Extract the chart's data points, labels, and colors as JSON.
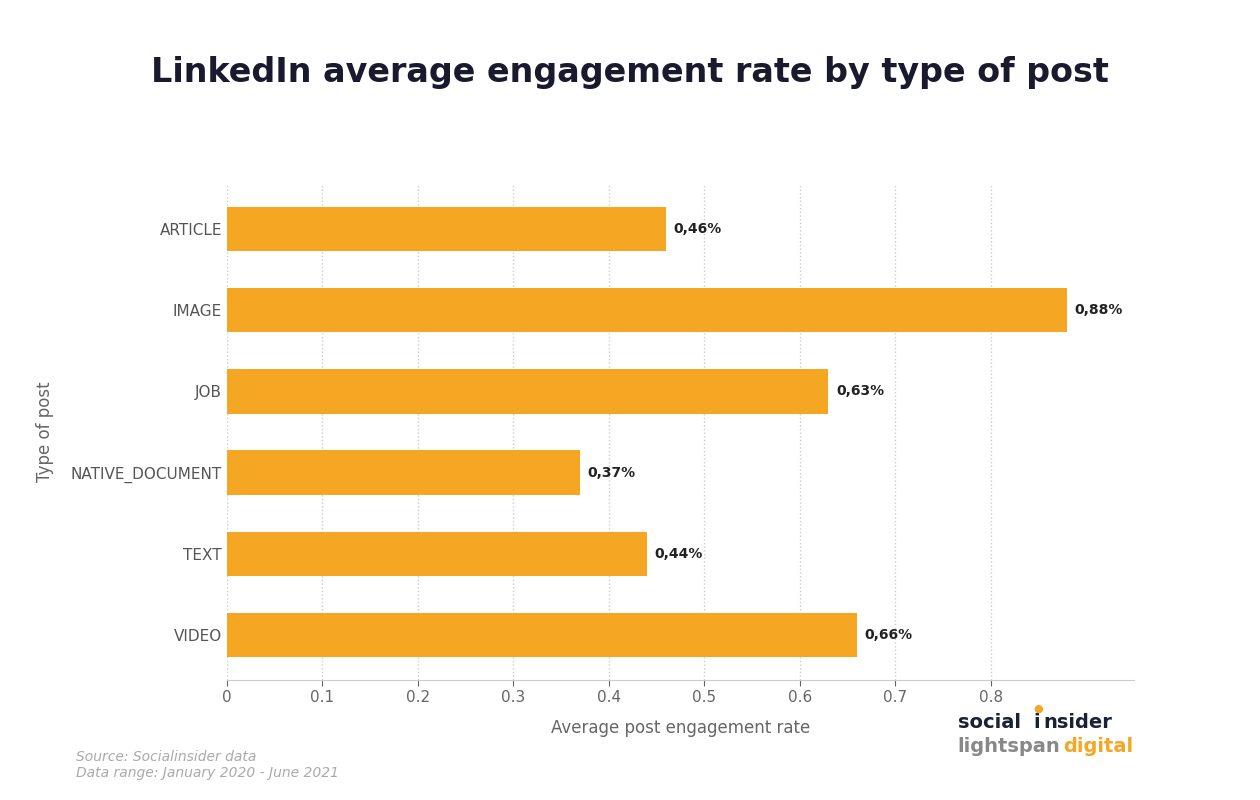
{
  "title": "LinkedIn average engagement rate by type of post",
  "categories": [
    "VIDEO",
    "TEXT",
    "NATIVE_DOCUMENT",
    "JOB",
    "IMAGE",
    "ARTICLE"
  ],
  "values": [
    0.66,
    0.44,
    0.37,
    0.63,
    0.88,
    0.46
  ],
  "labels": [
    "0,66%",
    "0,44%",
    "0,37%",
    "0,63%",
    "0,88%",
    "0,46%"
  ],
  "bar_color": "#F5A623",
  "xlabel": "Average post engagement rate",
  "ylabel": "Type of post",
  "xlim": [
    0,
    0.95
  ],
  "xticks": [
    0,
    0.1,
    0.2,
    0.3,
    0.4,
    0.5,
    0.6,
    0.7,
    0.8
  ],
  "xtick_labels": [
    "0",
    "0.1",
    "0.2",
    "0.3",
    "0.4",
    "0.5",
    "0.6",
    "0.7",
    "0.8"
  ],
  "background_color": "#ffffff",
  "title_fontsize": 24,
  "label_fontsize": 11,
  "tick_fontsize": 11,
  "ylabel_fontsize": 12,
  "xlabel_fontsize": 12,
  "bar_label_fontsize": 10,
  "source_text": "Source: Socialinsider data\nData range: January 2020 - June 2021",
  "source_fontsize": 10,
  "grid_color": "#cccccc",
  "tick_label_color": "#666666",
  "category_label_color": "#555555",
  "bar_label_color": "#222222",
  "title_color": "#1a1a2e"
}
